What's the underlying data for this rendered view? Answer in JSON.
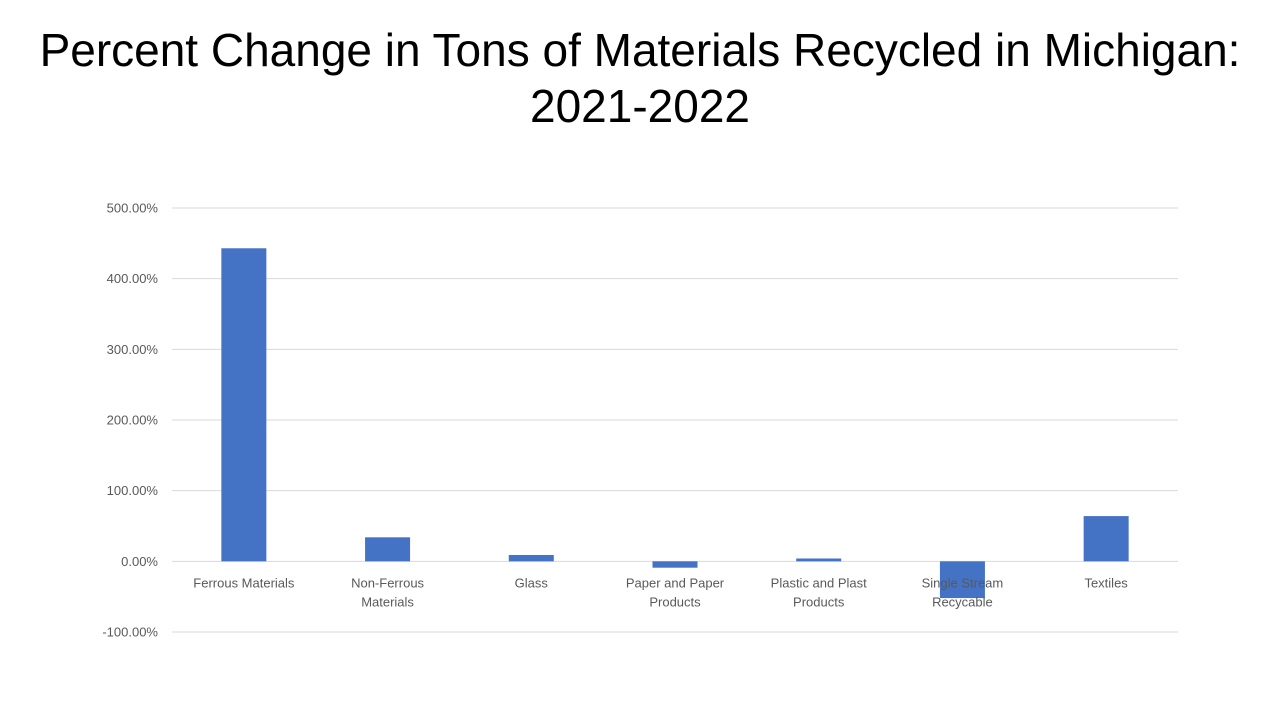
{
  "title": {
    "line1": "Percent Change in Tons of Materials Recycled in Michigan:",
    "line2": "2021-2022"
  },
  "colors": {
    "bar": "#4472c4",
    "grid": "#d9d9d9",
    "text": "#595959"
  },
  "chart_data": {
    "type": "bar",
    "title": "Percent Change in Tons of Materials Recycled in Michigan: 2021-2022",
    "xlabel": "",
    "ylabel": "",
    "categories": [
      [
        "Ferrous Materials"
      ],
      [
        "Non-Ferrous",
        "Materials"
      ],
      [
        "Glass"
      ],
      [
        "Paper and Paper",
        "Products"
      ],
      [
        "Plastic and Plast",
        "Products"
      ],
      [
        "Single Stream",
        "Recycable"
      ],
      [
        "Textiles"
      ]
    ],
    "values": [
      443,
      34,
      9,
      -9,
      4,
      -52,
      64
    ],
    "ylim": [
      -100,
      500
    ],
    "yticks": [
      500,
      400,
      300,
      200,
      100,
      0,
      -100
    ],
    "ytick_labels": [
      "500.00%",
      "400.00%",
      "300.00%",
      "200.00%",
      "100.00%",
      "0.00%",
      "-100.00%"
    ],
    "grid": true,
    "legend": "none"
  }
}
